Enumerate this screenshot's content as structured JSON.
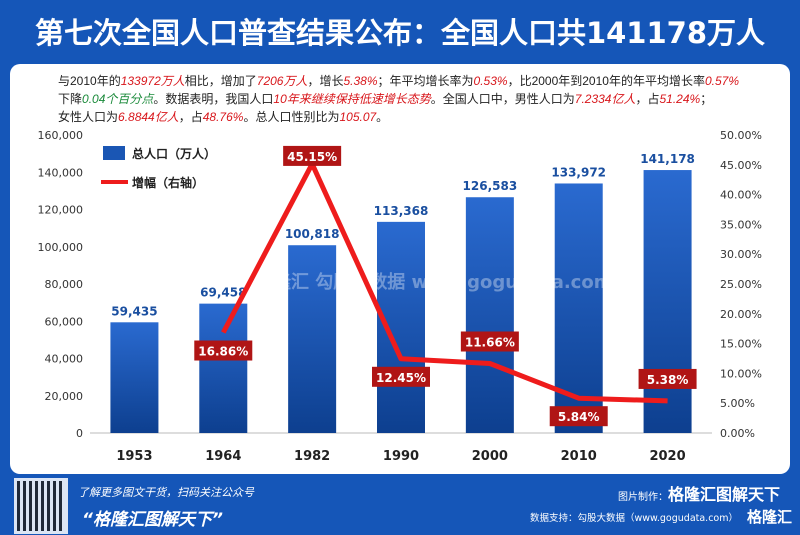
{
  "title": "第七次全国人口普查结果公布：全国人口共141178万人",
  "description": [
    {
      "t": "与2010年的",
      "c": ""
    },
    {
      "t": "133972万人",
      "c": "r"
    },
    {
      "t": "相比，增加了",
      "c": ""
    },
    {
      "t": "7206万人",
      "c": "r"
    },
    {
      "t": "，增长",
      "c": ""
    },
    {
      "t": "5.38%",
      "c": "r"
    },
    {
      "t": "；年平均增长率为",
      "c": ""
    },
    {
      "t": "0.53%",
      "c": "r"
    },
    {
      "t": "，比2000年到2010年的年平均增长率",
      "c": ""
    },
    {
      "t": "0.57%",
      "c": "r"
    },
    {
      "t": "下降",
      "c": ""
    },
    {
      "t": "0.04个百分点",
      "c": "g"
    },
    {
      "t": "。数据表明，我国人口",
      "c": ""
    },
    {
      "t": "10年来继续保持低速增长态势",
      "c": "r"
    },
    {
      "t": "。全国人口中，男性人口为",
      "c": ""
    },
    {
      "t": "7.2334亿人",
      "c": "r"
    },
    {
      "t": "，占",
      "c": ""
    },
    {
      "t": "51.24%",
      "c": "r"
    },
    {
      "t": "；",
      "c": ""
    },
    {
      "t": "女性人口为",
      "c": ""
    },
    {
      "t": "6.8844亿人",
      "c": "r"
    },
    {
      "t": "，占",
      "c": ""
    },
    {
      "t": "48.76%",
      "c": "r"
    },
    {
      "t": "。总人口性别比为",
      "c": ""
    },
    {
      "t": "105.07",
      "c": "r"
    },
    {
      "t": "。",
      "c": ""
    }
  ],
  "chart_data": {
    "type": "bar+line",
    "categories": [
      "1953",
      "1964",
      "1982",
      "1990",
      "2000",
      "2010",
      "2020"
    ],
    "series": [
      {
        "name": "总人口（万人）",
        "type": "bar",
        "axis": "left",
        "values": [
          59435,
          69458,
          100818,
          113368,
          126583,
          133972,
          141178
        ],
        "labels": [
          "59,435",
          "69,458",
          "100,818",
          "113,368",
          "126,583",
          "133,972",
          "141,178"
        ]
      },
      {
        "name": "增幅（右轴）",
        "type": "line",
        "axis": "right",
        "values": [
          null,
          16.86,
          45.15,
          12.45,
          11.66,
          5.84,
          5.38
        ],
        "labels": [
          "",
          "16.86%",
          "45.15%",
          "12.45%",
          "11.66%",
          "5.84%",
          "5.38%"
        ]
      }
    ],
    "ylim": [
      0,
      160000
    ],
    "y2lim": [
      0,
      50
    ],
    "yticks": [
      "0",
      "20,000",
      "40,000",
      "60,000",
      "80,000",
      "100,000",
      "120,000",
      "140,000",
      "160,000"
    ],
    "y2ticks": [
      "0.00%",
      "5.00%",
      "10.00%",
      "15.00%",
      "20.00%",
      "25.00%",
      "30.00%",
      "35.00%",
      "40.00%",
      "45.00%",
      "50.00%"
    ],
    "legend": "top-left",
    "colors": {
      "bar": "#1a56b4",
      "line": "#ee1c1c",
      "label_bg": "#b01515"
    }
  },
  "watermark": "格隆汇 勾股大数据 www.gogudata.com",
  "footer": {
    "promo": "了解更多图文干货，扫码关注公众号",
    "slogan": "“格隆汇图解天下”",
    "made_by_label": "图片制作：",
    "made_by": "格隆汇图解天下",
    "data_support": "数据支持：勾股大数据（www.gogudata.com）",
    "logo": "格隆汇"
  }
}
